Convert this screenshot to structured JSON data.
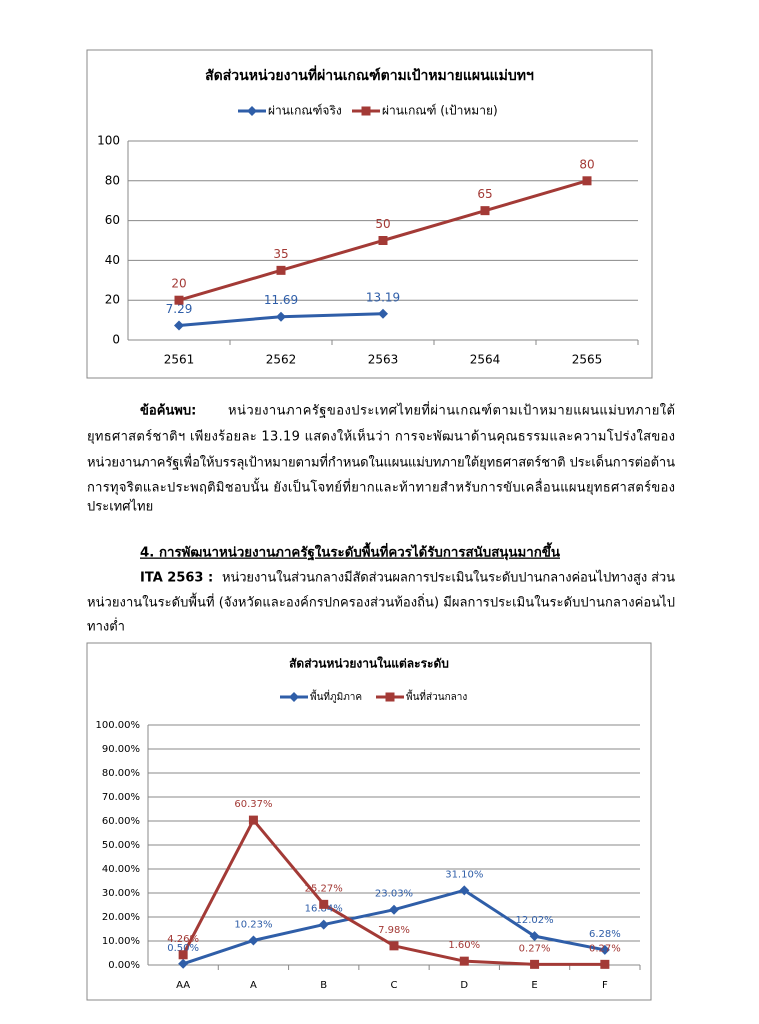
{
  "chart_data": [
    {
      "type": "line",
      "title": "สัดส่วนหน่วยงานที่ผ่านเกณฑ์ตามเป้าหมายแผนแม่บทฯ",
      "categories": [
        "2561",
        "2562",
        "2563",
        "2564",
        "2565"
      ],
      "series": [
        {
          "name": "ผ่านเกณฑ์จริง",
          "color": "#2f5ea8",
          "marker": "diamond",
          "values": [
            7.29,
            11.69,
            13.19,
            null,
            null
          ]
        },
        {
          "name": "ผ่านเกณฑ์ (เป้าหมาย)",
          "color": "#a33a36",
          "marker": "square",
          "values": [
            20,
            35,
            50,
            65,
            80
          ]
        }
      ],
      "ylim": [
        0,
        100
      ],
      "yticks": [
        0,
        20,
        40,
        60,
        80,
        100
      ],
      "grid": true,
      "legend": "top"
    },
    {
      "type": "line",
      "title": "สัดส่วนหน่วยงานในแต่ละระดับ",
      "categories": [
        "AA",
        "A",
        "B",
        "C",
        "D",
        "E",
        "F"
      ],
      "series": [
        {
          "name": "พื้นที่ภูมิภาค",
          "color": "#2f5ea8",
          "marker": "diamond",
          "values": [
            0.5,
            10.23,
            16.84,
            23.03,
            31.1,
            12.02,
            6.28
          ],
          "value_labels": [
            "0.50%",
            "10.23%",
            "16.84%",
            "23.03%",
            "31.10%",
            "12.02%",
            "6.28%"
          ]
        },
        {
          "name": "พื้นที่ส่วนกลาง",
          "color": "#a33a36",
          "marker": "square",
          "values": [
            4.26,
            60.37,
            25.27,
            7.98,
            1.6,
            0.27,
            0.27
          ],
          "value_labels": [
            "4.26%",
            "60.37%",
            "25.27%",
            "7.98%",
            "1.60%",
            "0.27%",
            "0.27%"
          ]
        }
      ],
      "ylim": [
        0,
        100
      ],
      "yticks": [
        {
          "value": 0,
          "label": "0.00%"
        },
        {
          "value": 10,
          "label": "10.00%"
        },
        {
          "value": 20,
          "label": "20.00%"
        },
        {
          "value": 30,
          "label": "30.00%"
        },
        {
          "value": 40,
          "label": "40.00%"
        },
        {
          "value": 50,
          "label": "50.00%"
        },
        {
          "value": 60,
          "label": "60.00%"
        },
        {
          "value": 70,
          "label": "70.00%"
        },
        {
          "value": 80,
          "label": "80.00%"
        },
        {
          "value": 90,
          "label": "90.00%"
        },
        {
          "value": 100,
          "label": "100.00%"
        }
      ],
      "grid": true,
      "legend": "top"
    }
  ],
  "document": {
    "finding": {
      "label": "ข้อค้นพบ:",
      "lines": [
        "หน่วยงานภาครัฐของประเทศไทยที่ผ่านเกณฑ์ตามเป้าหมายแผนแม่บทภายใต้",
        "ยุทธศาสตร์ชาติฯ เพียงร้อยละ 13.19 แสดงให้เห็นว่า การจะพัฒนาด้านคุณธรรมและความโปร่งใสของ",
        "หน่วยงานภาครัฐเพื่อให้บรรลุเป้าหมายตามที่กำหนดในแผนแม่บทภายใต้ยุทธศาสตร์ชาติ ประเด็นการต่อต้าน",
        "การทุจริตและประพฤติมิชอบนั้น ยังเป็นโจทย์ที่ยากและท้าทายสำหรับการขับเคลื่อนแผนยุทธศาสตร์ของ",
        "ประเทศไทย"
      ]
    },
    "heading": "4. การพัฒนาหน่วยงานภาครัฐในระดับพื้นที่ควรได้รับการสนับสนุนมากขึ้น",
    "ita": {
      "label": "ITA 2563 :",
      "lines": [
        "หน่วยงานในส่วนกลางมีสัดส่วนผลการประเมินในระดับปานกลางค่อนไปทางสูง ส่วน",
        "หน่วยงานในระดับพื้นที่ (จังหวัดและองค์กรปกครองส่วนท้องถิ่น) มีผลการประเมินในระดับปานกลางค่อนไป",
        "ทางต่ำ"
      ]
    }
  }
}
